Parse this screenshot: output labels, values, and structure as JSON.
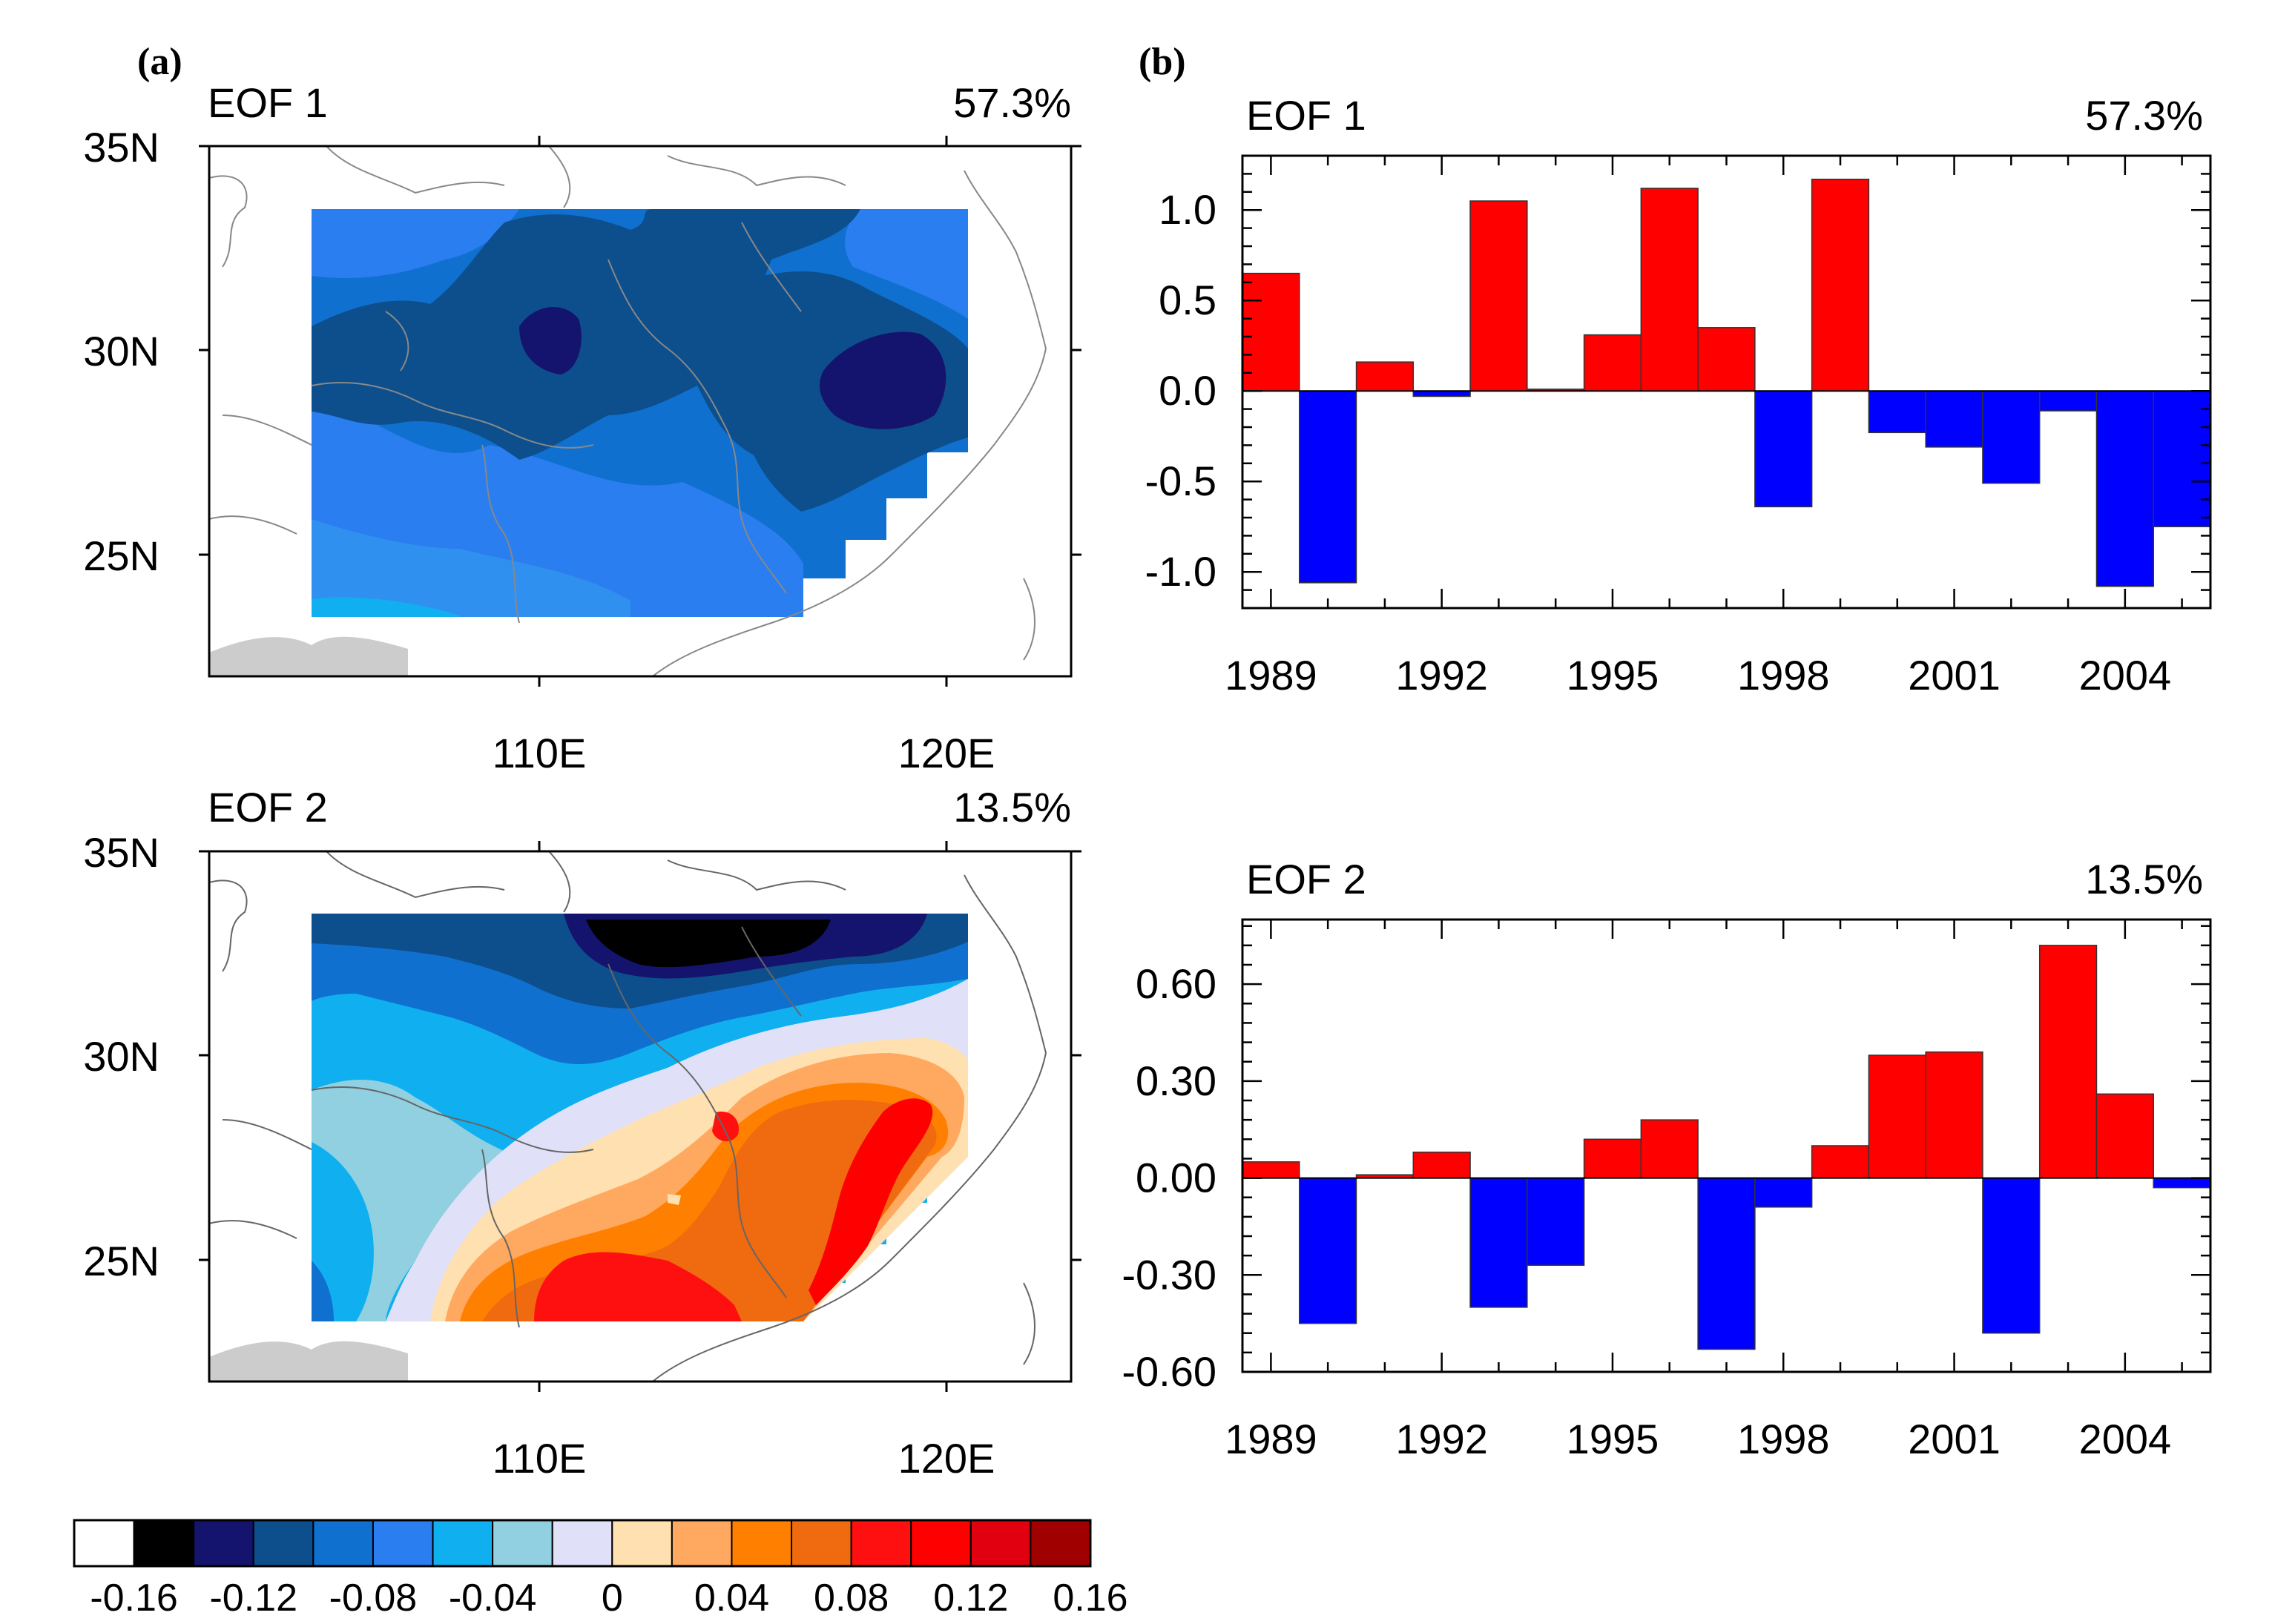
{
  "panel_labels": {
    "a": "(a)",
    "b": "(b)"
  },
  "maps": [
    {
      "title": "EOF 1",
      "variance": "57.3%",
      "lat_ticks": [
        "35N",
        "30N",
        "25N"
      ],
      "lon_ticks": [
        "110E",
        "120E"
      ]
    },
    {
      "title": "EOF 2",
      "variance": "13.5%",
      "lat_ticks": [
        "35N",
        "30N",
        "25N"
      ],
      "lon_ticks": [
        "110E",
        "120E"
      ]
    }
  ],
  "colorbar": {
    "labels": [
      "-0.16",
      "-0.12",
      "-0.08",
      "-0.04",
      "0",
      "0.04",
      "0.08",
      "0.12",
      "0.16"
    ],
    "colors": [
      "#ffffff",
      "#000000",
      "#14146e",
      "#0d4f8c",
      "#1070d0",
      "#2a7ef0",
      "#10b0f0",
      "#90d0e0",
      "#e0e0f8",
      "#ffe0b0",
      "#ffa860",
      "#ff8000",
      "#f06a10",
      "#ff1010",
      "#ff0000",
      "#e00010",
      "#a00000"
    ]
  },
  "colors": {
    "positive": "#ff0000",
    "negative": "#0000ff"
  },
  "chart_data": [
    {
      "type": "bar",
      "title": "EOF 1",
      "variance": "57.3%",
      "x": [
        1989,
        1990,
        1991,
        1992,
        1993,
        1994,
        1995,
        1996,
        1997,
        1998,
        1999,
        2000,
        2001,
        2002,
        2003,
        2004,
        2005
      ],
      "values": [
        0.65,
        -1.06,
        0.16,
        -0.03,
        1.05,
        0.01,
        0.31,
        1.12,
        0.35,
        -0.64,
        1.17,
        -0.23,
        -0.31,
        -0.51,
        -0.11,
        -1.08,
        -0.75
      ],
      "xticks": [
        1989,
        1992,
        1995,
        1998,
        2001,
        2004
      ],
      "xtick_labels": [
        "1989",
        "1992",
        "1995",
        "1998",
        "2001",
        "2004"
      ],
      "yticks": [
        1.0,
        0.5,
        0.0,
        -0.5,
        -1.0
      ],
      "ytick_labels": [
        "1.0",
        "0.5",
        "0.0",
        "-0.5",
        "-1.0"
      ],
      "ylim": [
        -1.2,
        1.3
      ],
      "xlim": [
        1988.5,
        2005.5
      ]
    },
    {
      "type": "bar",
      "title": "EOF 2",
      "variance": "13.5%",
      "x": [
        1989,
        1990,
        1991,
        1992,
        1993,
        1994,
        1995,
        1996,
        1997,
        1998,
        1999,
        2000,
        2001,
        2002,
        2003,
        2004,
        2005
      ],
      "values": [
        0.05,
        -0.45,
        0.01,
        0.08,
        -0.4,
        -0.27,
        0.12,
        0.18,
        -0.53,
        -0.09,
        0.1,
        0.38,
        0.39,
        -0.48,
        0.72,
        0.26,
        -0.03
      ],
      "xticks": [
        1989,
        1992,
        1995,
        1998,
        2001,
        2004
      ],
      "xtick_labels": [
        "1989",
        "1992",
        "1995",
        "1998",
        "2001",
        "2004"
      ],
      "yticks": [
        0.6,
        0.3,
        0.0,
        -0.3,
        -0.6
      ],
      "ytick_labels": [
        "0.60",
        "0.30",
        "0.00",
        "-0.30",
        "-0.60"
      ],
      "ylim": [
        -0.6,
        0.8
      ],
      "xlim": [
        1988.5,
        2005.5
      ]
    }
  ]
}
